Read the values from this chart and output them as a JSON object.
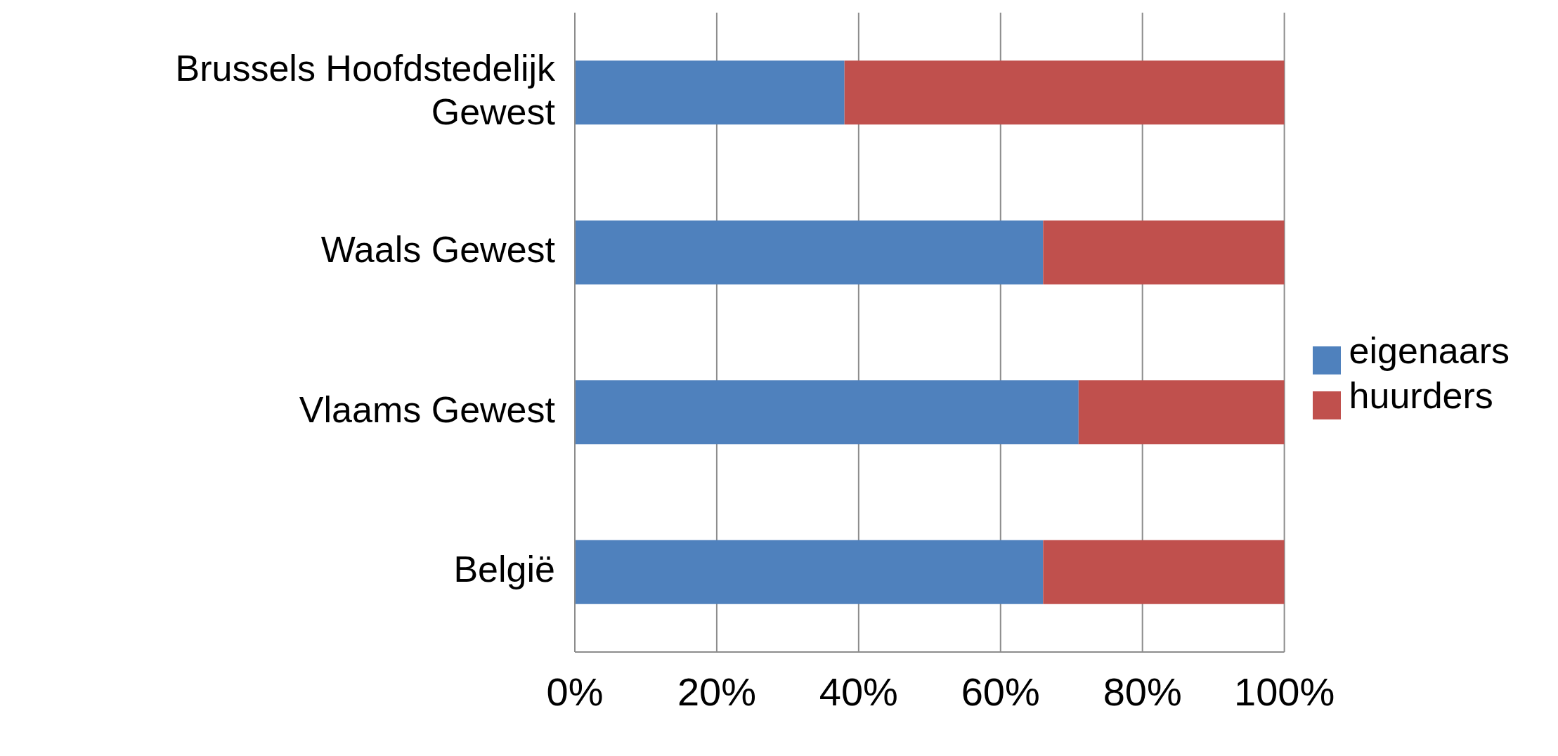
{
  "chart_data": {
    "type": "bar",
    "orientation": "horizontal",
    "stacked": true,
    "categories": [
      "Brussels Hoofdstedelijk Gewest",
      "Waals Gewest",
      "Vlaams Gewest",
      "België"
    ],
    "series": [
      {
        "name": "eigenaars",
        "color": "#4f81bd",
        "values": [
          38,
          66,
          71,
          66
        ]
      },
      {
        "name": "huurders",
        "color": "#c0504d",
        "values": [
          62,
          34,
          29,
          34
        ]
      }
    ],
    "xlim": [
      0,
      100
    ],
    "xticks": [
      {
        "value": 0,
        "label": "0%"
      },
      {
        "value": 20,
        "label": "20%"
      },
      {
        "value": 40,
        "label": "40%"
      },
      {
        "value": 60,
        "label": "60%"
      },
      {
        "value": 80,
        "label": "80%"
      },
      {
        "value": 100,
        "label": "100%"
      }
    ],
    "grid": "x",
    "legend": "right"
  }
}
